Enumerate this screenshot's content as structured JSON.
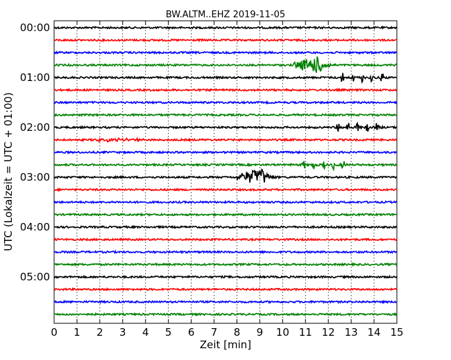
{
  "chart_data": {
    "type": "line",
    "title": "BW.ALTM..EHZ 2019-11-05",
    "xlabel": "Zeit  [min]",
    "ylabel": "UTC (Lokalzeit = UTC + 01:00)",
    "xlim": [
      0,
      15
    ],
    "x_ticks": [
      0,
      1,
      2,
      3,
      4,
      5,
      6,
      7,
      8,
      9,
      10,
      11,
      12,
      13,
      14,
      15
    ],
    "y_ticks": [
      "00:00",
      "01:00",
      "02:00",
      "03:00",
      "04:00",
      "05:00"
    ],
    "trace_interval_min": 15,
    "trace_count": 24,
    "grid": "vertical dotted at each minute",
    "colors": [
      "#000000",
      "#ff0000",
      "#0000ff",
      "#008000"
    ],
    "events": [
      {
        "trace": 3,
        "start_min": 10.5,
        "peak_min": 11.6,
        "end_min": 12.6,
        "amplitude": "large"
      },
      {
        "trace": 4,
        "start_min": 12.4,
        "peak_min": 12.4,
        "end_min": 14.6,
        "amplitude": "small bursts"
      },
      {
        "trace": 8,
        "start_min": 12.2,
        "peak_min": 14.2,
        "end_min": 14.4,
        "amplitude": "small bursts"
      },
      {
        "trace": 9,
        "start_min": 1.7,
        "peak_min": 3.7,
        "end_min": 3.8,
        "amplitude": "tiny"
      },
      {
        "trace": 11,
        "start_min": 10.7,
        "peak_min": 10.7,
        "end_min": 13.0,
        "amplitude": "small bursts"
      },
      {
        "trace": 12,
        "start_min": 8.0,
        "peak_min": 9.1,
        "end_min": 10.0,
        "amplitude": "large"
      }
    ]
  }
}
